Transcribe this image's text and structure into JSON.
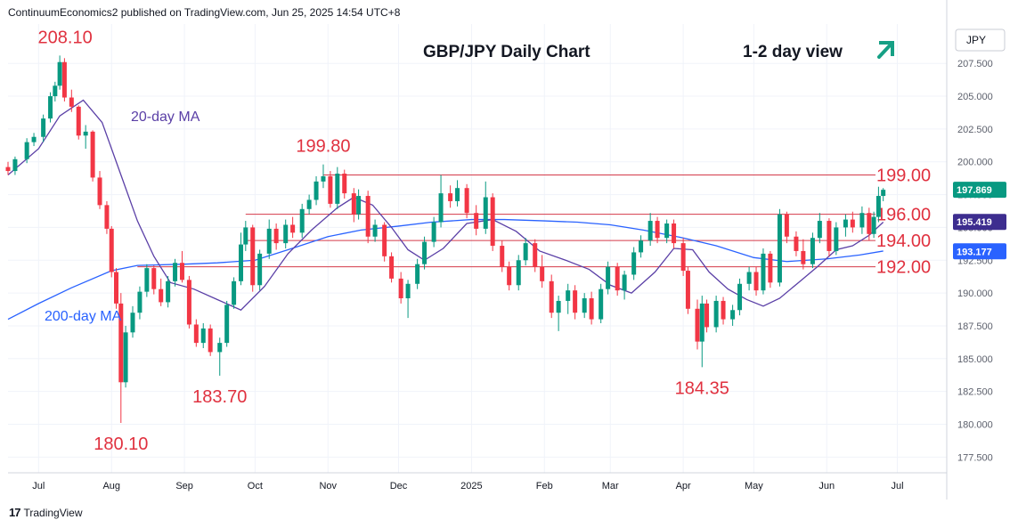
{
  "header": {
    "publisher_line": "ContinuumEconomics2 published on TradingView.com, Jun 25, 2025 14:54 UTC+8"
  },
  "footer": {
    "logo_mark": "17",
    "brand": "TradingView"
  },
  "currency_label": "JPY",
  "colors": {
    "up": "#089981",
    "down": "#f23645",
    "level_line": "#d43a4a",
    "ma20": "#5a3fa6",
    "ma200": "#2962ff",
    "label_red": "#e0313f",
    "arrow": "#16a085"
  },
  "chart_data": {
    "type": "candlestick",
    "title": "GBP/JPY Daily Chart",
    "view_label": "1-2 day view",
    "view_arrow_icon": "arrow-up-right-icon",
    "ylim": [
      176.3,
      210.5
    ],
    "y_ticks": [
      "177.500",
      "180.000",
      "182.500",
      "185.000",
      "187.500",
      "190.000",
      "192.500",
      "195.000",
      "197.500",
      "200.000",
      "202.500",
      "205.000",
      "207.500"
    ],
    "x_axis": {
      "start": "2024-06-18",
      "end": "2025-07-22"
    },
    "x_ticks": [
      {
        "label": "Jul",
        "date": "2024-07-01"
      },
      {
        "label": "Aug",
        "date": "2024-08-01"
      },
      {
        "label": "Sep",
        "date": "2024-09-01"
      },
      {
        "label": "Oct",
        "date": "2024-10-01"
      },
      {
        "label": "Nov",
        "date": "2024-11-01"
      },
      {
        "label": "Dec",
        "date": "2024-12-01"
      },
      {
        "label": "2025",
        "date": "2025-01-01"
      },
      {
        "label": "Feb",
        "date": "2025-02-01"
      },
      {
        "label": "Mar",
        "date": "2025-03-01"
      },
      {
        "label": "Apr",
        "date": "2025-04-01"
      },
      {
        "label": "May",
        "date": "2025-05-01"
      },
      {
        "label": "Jun",
        "date": "2025-06-01"
      },
      {
        "label": "Jul",
        "date": "2025-07-01"
      }
    ],
    "price_tags": [
      {
        "value": "197.869",
        "price": 197.869,
        "color": "#089981"
      },
      {
        "value": "195.419",
        "price": 195.419,
        "color": "#3d2d8f"
      },
      {
        "value": "193.177",
        "price": 193.177,
        "color": "#2962ff"
      }
    ],
    "levels": [
      {
        "label": "199.00",
        "price": 199.0,
        "start": "2024-10-30"
      },
      {
        "label": "196.00",
        "price": 196.0,
        "start": "2024-09-27"
      },
      {
        "label": "194.00",
        "price": 194.0,
        "start": "2024-09-27"
      },
      {
        "label": "192.00",
        "price": 192.0,
        "start": "2024-08-12"
      }
    ],
    "annotations": [
      {
        "text": "208.10",
        "date": "2024-07-10",
        "price": 208.1
      },
      {
        "text": "199.80",
        "date": "2024-10-30",
        "price": 199.8
      },
      {
        "text": "180.10",
        "date": "2024-08-05",
        "price": 180.1
      },
      {
        "text": "183.70",
        "date": "2024-09-16",
        "price": 183.7
      },
      {
        "text": "184.35",
        "date": "2025-04-09",
        "price": 184.35
      }
    ],
    "series": [
      {
        "name": "20-day MA",
        "label": "20-day MA"
      },
      {
        "name": "200-day MA",
        "label": "200-day MA"
      }
    ],
    "ma200": [
      [
        "2024-06-18",
        188.0
      ],
      [
        "2024-07-01",
        189.2
      ],
      [
        "2024-07-15",
        190.4
      ],
      [
        "2024-08-01",
        191.7
      ],
      [
        "2024-08-12",
        192.1
      ],
      [
        "2024-09-01",
        192.2
      ],
      [
        "2024-09-15",
        192.3
      ],
      [
        "2024-10-01",
        192.5
      ],
      [
        "2024-10-15",
        193.3
      ],
      [
        "2024-11-01",
        194.3
      ],
      [
        "2024-11-15",
        194.8
      ],
      [
        "2024-12-01",
        195.1
      ],
      [
        "2024-12-15",
        195.4
      ],
      [
        "2025-01-01",
        195.6
      ],
      [
        "2025-01-15",
        195.6
      ],
      [
        "2025-02-01",
        195.5
      ],
      [
        "2025-02-15",
        195.4
      ],
      [
        "2025-03-01",
        195.2
      ],
      [
        "2025-03-15",
        194.8
      ],
      [
        "2025-04-01",
        194.2
      ],
      [
        "2025-04-15",
        193.6
      ],
      [
        "2025-05-01",
        192.7
      ],
      [
        "2025-05-15",
        192.4
      ],
      [
        "2025-06-01",
        192.6
      ],
      [
        "2025-06-15",
        192.9
      ],
      [
        "2025-06-25",
        193.2
      ]
    ],
    "ma20": [
      [
        "2024-06-18",
        199.0
      ],
      [
        "2024-07-01",
        201.0
      ],
      [
        "2024-07-10",
        203.5
      ],
      [
        "2024-07-20",
        204.7
      ],
      [
        "2024-07-28",
        203.0
      ],
      [
        "2024-08-05",
        199.0
      ],
      [
        "2024-08-12",
        195.5
      ],
      [
        "2024-08-19",
        192.8
      ],
      [
        "2024-08-26",
        190.8
      ],
      [
        "2024-09-05",
        190.3
      ],
      [
        "2024-09-15",
        189.5
      ],
      [
        "2024-09-25",
        188.7
      ],
      [
        "2024-10-05",
        190.5
      ],
      [
        "2024-10-15",
        193.0
      ],
      [
        "2024-10-25",
        194.8
      ],
      [
        "2024-11-05",
        196.5
      ],
      [
        "2024-11-12",
        197.3
      ],
      [
        "2024-11-20",
        196.7
      ],
      [
        "2024-11-28",
        195.0
      ],
      [
        "2024-12-05",
        193.3
      ],
      [
        "2024-12-12",
        192.5
      ],
      [
        "2024-12-20",
        193.4
      ],
      [
        "2024-12-30",
        195.3
      ],
      [
        "2025-01-10",
        195.6
      ],
      [
        "2025-01-20",
        194.7
      ],
      [
        "2025-01-30",
        193.2
      ],
      [
        "2025-02-10",
        192.5
      ],
      [
        "2025-02-20",
        191.8
      ],
      [
        "2025-03-01",
        190.6
      ],
      [
        "2025-03-10",
        190.0
      ],
      [
        "2025-03-20",
        191.6
      ],
      [
        "2025-03-28",
        193.4
      ],
      [
        "2025-04-05",
        193.3
      ],
      [
        "2025-04-12",
        191.6
      ],
      [
        "2025-04-20",
        190.3
      ],
      [
        "2025-04-28",
        189.5
      ],
      [
        "2025-05-05",
        189.0
      ],
      [
        "2025-05-12",
        189.6
      ],
      [
        "2025-05-20",
        190.8
      ],
      [
        "2025-05-28",
        192.0
      ],
      [
        "2025-06-05",
        193.3
      ],
      [
        "2025-06-12",
        193.6
      ],
      [
        "2025-06-19",
        194.4
      ],
      [
        "2025-06-25",
        195.4
      ]
    ],
    "candles": [
      [
        "2024-06-18",
        199.6,
        200.0,
        199.0,
        199.3
      ],
      [
        "2024-06-21",
        199.3,
        200.4,
        199.0,
        200.2
      ],
      [
        "2024-06-26",
        200.2,
        201.8,
        199.9,
        201.5
      ],
      [
        "2024-06-29",
        201.5,
        202.2,
        201.2,
        201.9
      ],
      [
        "2024-07-03",
        201.9,
        203.6,
        201.5,
        203.3
      ],
      [
        "2024-07-06",
        203.3,
        205.3,
        203.0,
        205.0
      ],
      [
        "2024-07-08",
        205.0,
        206.1,
        204.6,
        205.8
      ],
      [
        "2024-07-10",
        205.8,
        208.1,
        205.5,
        207.6
      ],
      [
        "2024-07-12",
        207.6,
        207.9,
        204.6,
        204.9
      ],
      [
        "2024-07-15",
        204.9,
        205.5,
        203.8,
        204.2
      ],
      [
        "2024-07-18",
        204.2,
        204.3,
        201.7,
        202.0
      ],
      [
        "2024-07-21",
        202.0,
        202.8,
        201.0,
        202.3
      ],
      [
        "2024-07-24",
        202.3,
        202.4,
        198.5,
        198.8
      ],
      [
        "2024-07-27",
        198.8,
        199.3,
        196.4,
        196.7
      ],
      [
        "2024-07-30",
        196.7,
        197.0,
        194.5,
        194.9
      ],
      [
        "2024-08-01",
        194.9,
        195.1,
        191.2,
        191.6
      ],
      [
        "2024-08-03",
        191.6,
        191.9,
        188.8,
        189.2
      ],
      [
        "2024-08-05",
        189.2,
        190.0,
        180.1,
        183.2
      ],
      [
        "2024-08-07",
        183.2,
        187.5,
        182.8,
        187.0
      ],
      [
        "2024-08-10",
        187.0,
        189.0,
        186.6,
        188.5
      ],
      [
        "2024-08-13",
        188.5,
        190.5,
        188.0,
        190.1
      ],
      [
        "2024-08-16",
        190.1,
        192.2,
        189.7,
        191.9
      ],
      [
        "2024-08-19",
        191.9,
        192.1,
        189.9,
        190.3
      ],
      [
        "2024-08-22",
        190.3,
        191.1,
        189.0,
        189.3
      ],
      [
        "2024-08-25",
        189.3,
        191.3,
        188.9,
        190.9
      ],
      [
        "2024-08-28",
        190.9,
        192.6,
        190.5,
        192.3
      ],
      [
        "2024-08-31",
        192.3,
        193.2,
        190.8,
        191.0
      ],
      [
        "2024-09-03",
        191.0,
        191.3,
        187.3,
        187.6
      ],
      [
        "2024-09-06",
        187.6,
        188.0,
        185.9,
        186.2
      ],
      [
        "2024-09-09",
        186.2,
        187.7,
        185.8,
        187.3
      ],
      [
        "2024-09-12",
        187.3,
        187.6,
        185.2,
        185.5
      ],
      [
        "2024-09-16",
        185.5,
        186.6,
        183.7,
        186.2
      ],
      [
        "2024-09-19",
        186.2,
        189.4,
        185.9,
        189.1
      ],
      [
        "2024-09-22",
        189.1,
        191.2,
        188.8,
        190.9
      ],
      [
        "2024-09-25",
        190.9,
        194.6,
        190.6,
        193.7
      ],
      [
        "2024-09-27",
        193.7,
        195.5,
        193.2,
        195.0
      ],
      [
        "2024-09-30",
        195.0,
        195.2,
        190.1,
        190.6
      ],
      [
        "2024-10-03",
        190.6,
        193.3,
        190.2,
        193.0
      ],
      [
        "2024-10-07",
        193.0,
        195.6,
        192.6,
        194.9
      ],
      [
        "2024-10-10",
        194.9,
        195.3,
        193.3,
        193.8
      ],
      [
        "2024-10-14",
        193.8,
        195.6,
        193.4,
        195.2
      ],
      [
        "2024-10-17",
        195.2,
        195.8,
        194.2,
        194.6
      ],
      [
        "2024-10-21",
        194.6,
        196.8,
        194.2,
        196.4
      ],
      [
        "2024-10-24",
        196.4,
        197.5,
        196.0,
        197.1
      ],
      [
        "2024-10-27",
        197.1,
        198.9,
        196.7,
        198.5
      ],
      [
        "2024-10-30",
        198.5,
        199.8,
        198.0,
        198.9
      ],
      [
        "2024-11-02",
        198.9,
        199.3,
        196.5,
        196.8
      ],
      [
        "2024-11-05",
        196.8,
        199.6,
        196.4,
        199.1
      ],
      [
        "2024-11-08",
        199.1,
        199.4,
        197.2,
        197.6
      ],
      [
        "2024-11-12",
        197.6,
        198.0,
        195.4,
        196.0
      ],
      [
        "2024-11-14",
        196.0,
        197.9,
        195.6,
        197.4
      ],
      [
        "2024-11-18",
        197.4,
        197.8,
        193.8,
        194.3
      ],
      [
        "2024-11-21",
        194.3,
        195.6,
        193.9,
        195.2
      ],
      [
        "2024-11-25",
        195.2,
        195.4,
        192.4,
        192.8
      ],
      [
        "2024-11-28",
        192.8,
        193.1,
        190.8,
        191.1
      ],
      [
        "2024-12-02",
        191.1,
        191.6,
        189.2,
        189.6
      ],
      [
        "2024-12-05",
        189.6,
        191.0,
        188.1,
        190.7
      ],
      [
        "2024-12-09",
        190.7,
        192.6,
        190.3,
        192.2
      ],
      [
        "2024-12-12",
        192.2,
        194.3,
        191.8,
        193.9
      ],
      [
        "2024-12-16",
        193.9,
        195.8,
        193.5,
        195.4
      ],
      [
        "2024-12-19",
        195.4,
        199.0,
        195.0,
        197.6
      ],
      [
        "2024-12-23",
        197.6,
        198.2,
        196.5,
        197.0
      ],
      [
        "2024-12-26",
        197.0,
        198.6,
        196.6,
        198.0
      ],
      [
        "2024-12-30",
        198.0,
        198.3,
        195.7,
        196.1
      ],
      [
        "2025-01-03",
        196.1,
        196.7,
        194.4,
        194.9
      ],
      [
        "2025-01-07",
        194.9,
        198.5,
        194.5,
        197.3
      ],
      [
        "2025-01-10",
        197.3,
        197.6,
        193.2,
        193.6
      ],
      [
        "2025-01-14",
        193.6,
        194.0,
        191.6,
        192.0
      ],
      [
        "2025-01-17",
        192.0,
        192.4,
        190.2,
        190.6
      ],
      [
        "2025-01-21",
        190.6,
        192.9,
        190.2,
        192.5
      ],
      [
        "2025-01-24",
        192.5,
        194.2,
        192.1,
        193.8
      ],
      [
        "2025-01-28",
        193.8,
        194.1,
        191.6,
        192.0
      ],
      [
        "2025-01-31",
        192.0,
        192.9,
        190.4,
        190.9
      ],
      [
        "2025-02-04",
        190.9,
        191.4,
        188.1,
        188.5
      ],
      [
        "2025-02-07",
        188.5,
        189.8,
        187.1,
        189.4
      ],
      [
        "2025-02-11",
        189.4,
        190.7,
        188.4,
        190.2
      ],
      [
        "2025-02-14",
        190.2,
        190.6,
        188.0,
        188.5
      ],
      [
        "2025-02-18",
        188.5,
        190.0,
        188.1,
        189.6
      ],
      [
        "2025-02-21",
        189.6,
        190.1,
        187.6,
        188.0
      ],
      [
        "2025-02-25",
        188.0,
        190.7,
        187.7,
        190.3
      ],
      [
        "2025-02-28",
        190.3,
        192.4,
        189.9,
        192.0
      ],
      [
        "2025-03-04",
        192.0,
        192.3,
        189.8,
        190.2
      ],
      [
        "2025-03-07",
        190.2,
        191.7,
        189.5,
        191.4
      ],
      [
        "2025-03-11",
        191.4,
        193.5,
        191.0,
        193.1
      ],
      [
        "2025-03-14",
        193.1,
        194.4,
        192.7,
        194.0
      ],
      [
        "2025-03-18",
        194.0,
        196.1,
        193.6,
        195.5
      ],
      [
        "2025-03-21",
        195.5,
        195.8,
        193.8,
        194.2
      ],
      [
        "2025-03-25",
        194.2,
        195.6,
        193.8,
        195.3
      ],
      [
        "2025-03-28",
        195.3,
        195.6,
        193.4,
        193.8
      ],
      [
        "2025-04-01",
        193.8,
        194.2,
        191.3,
        191.7
      ],
      [
        "2025-04-03",
        191.7,
        192.0,
        188.4,
        188.8
      ],
      [
        "2025-04-07",
        188.8,
        189.5,
        185.7,
        186.3
      ],
      [
        "2025-04-09",
        186.3,
        189.8,
        184.35,
        189.2
      ],
      [
        "2025-04-11",
        189.2,
        189.5,
        187.0,
        187.4
      ],
      [
        "2025-04-15",
        187.4,
        189.8,
        187.0,
        189.4
      ],
      [
        "2025-04-18",
        189.4,
        189.7,
        187.6,
        188.0
      ],
      [
        "2025-04-22",
        188.0,
        189.1,
        187.5,
        188.7
      ],
      [
        "2025-04-25",
        188.7,
        191.1,
        188.3,
        190.7
      ],
      [
        "2025-04-29",
        190.7,
        192.0,
        190.2,
        191.6
      ],
      [
        "2025-05-02",
        191.6,
        192.0,
        189.8,
        190.2
      ],
      [
        "2025-05-05",
        190.2,
        193.4,
        189.9,
        193.0
      ],
      [
        "2025-05-08",
        193.0,
        193.2,
        190.4,
        190.8
      ],
      [
        "2025-05-12",
        190.8,
        196.4,
        190.5,
        196.0
      ],
      [
        "2025-05-15",
        196.0,
        196.2,
        193.8,
        194.3
      ],
      [
        "2025-05-19",
        194.3,
        194.7,
        192.8,
        193.2
      ],
      [
        "2025-05-22",
        193.2,
        194.1,
        191.8,
        192.2
      ],
      [
        "2025-05-26",
        192.2,
        194.6,
        191.9,
        194.2
      ],
      [
        "2025-05-29",
        194.2,
        196.1,
        193.8,
        195.5
      ],
      [
        "2025-06-02",
        195.5,
        195.7,
        192.8,
        193.2
      ],
      [
        "2025-06-05",
        193.2,
        195.4,
        192.9,
        195.0
      ],
      [
        "2025-06-09",
        195.0,
        196.0,
        194.3,
        195.6
      ],
      [
        "2025-06-12",
        195.6,
        196.2,
        194.6,
        195.0
      ],
      [
        "2025-06-16",
        195.0,
        196.6,
        194.5,
        196.1
      ],
      [
        "2025-06-19",
        196.1,
        196.5,
        194.0,
        194.5
      ],
      [
        "2025-06-21",
        194.5,
        196.2,
        194.2,
        195.8
      ],
      [
        "2025-06-23",
        195.8,
        198.1,
        195.4,
        197.4
      ],
      [
        "2025-06-25",
        197.4,
        198.0,
        197.0,
        197.869
      ]
    ]
  }
}
